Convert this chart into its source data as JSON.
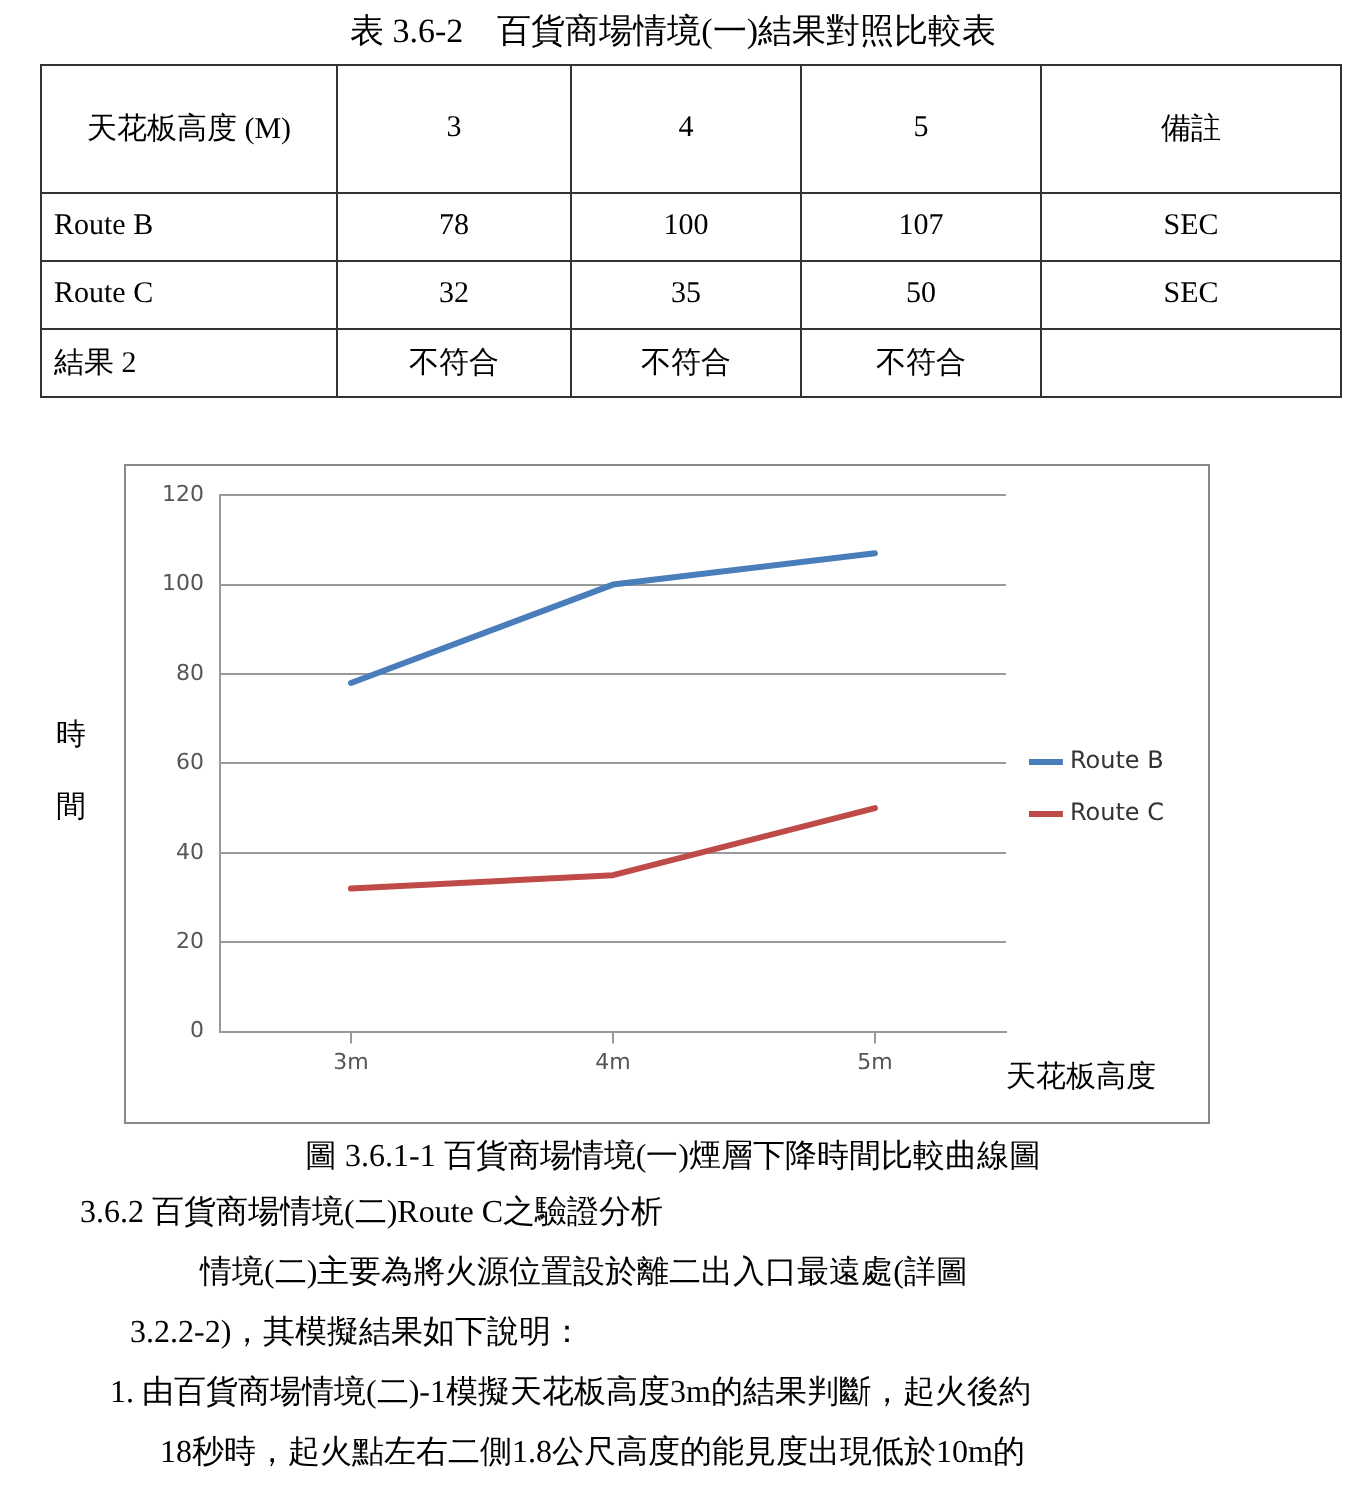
{
  "chart_data": {
    "type": "line",
    "categories": [
      "3m",
      "4m",
      "5m"
    ],
    "series": [
      {
        "name": "Route B",
        "color": "#4a7ebb",
        "values": [
          78,
          100,
          107
        ]
      },
      {
        "name": "Route C",
        "color": "#be4b48",
        "values": [
          32,
          35,
          50
        ]
      }
    ],
    "xlabel": "天花板高度",
    "ylabel": "時間",
    "ylim": [
      0,
      120
    ],
    "yticks": [
      0,
      20,
      40,
      60,
      80,
      100,
      120
    ],
    "grid": "y",
    "legend": "right",
    "marker": "none",
    "line_style": "solid",
    "annotations": [
      "表 3.6-2　百貨商場情境(一)結果對照比較表",
      "天花板高度 (M)",
      "3",
      "4",
      "5",
      "備註",
      "Route B",
      "78",
      "100",
      "107",
      "SEC",
      "Route C",
      "32",
      "35",
      "50",
      "SEC",
      "結果 2",
      "不符合",
      "不符合",
      "不符合",
      "圖 3.6.1-1 百貨商場情境(一)煙層下降時間比較曲線圖",
      "3.6.2 百貨商場情境(二)Route C之驗證分析",
      "情境(二)主要為將火源位置設於離二出入口最遠處(詳圖",
      "3.2.2-2)，其模擬結果如下說明：",
      "1. 由百貨商場情境(二)-1模擬天花板高度3m的結果判斷，起火後約",
      "18秒時，起火點左右二側1.8公尺高度的能見度出現低於10m的"
    ]
  }
}
